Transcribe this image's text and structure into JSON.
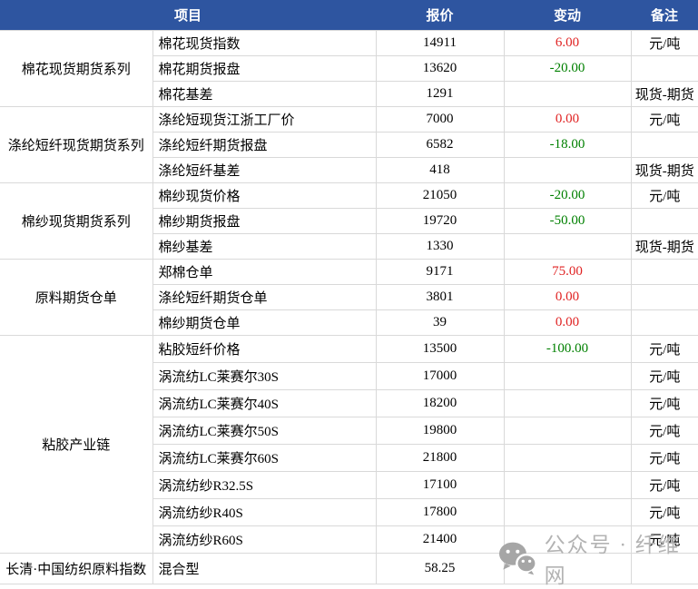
{
  "table": {
    "header": {
      "item": "项目",
      "price": "报价",
      "change": "变动",
      "note": "备注"
    },
    "groups": [
      {
        "name": "棉花现货期货系列",
        "rows": [
          {
            "item": "棉花现货指数",
            "price": "14911",
            "change": "6.00",
            "change_color": "red",
            "note": "元/吨"
          },
          {
            "item": "棉花期货报盘",
            "price": "13620",
            "change": "-20.00",
            "change_color": "green",
            "note": ""
          },
          {
            "item": "棉花基差",
            "price": "1291",
            "change": "",
            "change_color": "",
            "note": "现货-期货"
          }
        ]
      },
      {
        "name": "涤纶短纤现货期货系列",
        "rows": [
          {
            "item": "涤纶短现货江浙工厂价",
            "price": "7000",
            "change": "0.00",
            "change_color": "red",
            "note": "元/吨"
          },
          {
            "item": "涤纶短纤期货报盘",
            "price": "6582",
            "change": "-18.00",
            "change_color": "green",
            "note": ""
          },
          {
            "item": "涤纶短纤基差",
            "price": "418",
            "change": "",
            "change_color": "",
            "note": "现货-期货"
          }
        ]
      },
      {
        "name": "棉纱现货期货系列",
        "rows": [
          {
            "item": "棉纱现货价格",
            "price": "21050",
            "change": "-20.00",
            "change_color": "green",
            "note": "元/吨"
          },
          {
            "item": "棉纱期货报盘",
            "price": "19720",
            "change": "-50.00",
            "change_color": "green",
            "note": ""
          },
          {
            "item": "棉纱基差",
            "price": "1330",
            "change": "",
            "change_color": "",
            "note": "现货-期货"
          }
        ]
      },
      {
        "name": "原料期货仓单",
        "rows": [
          {
            "item": "郑棉仓单",
            "price": "9171",
            "change": "75.00",
            "change_color": "red",
            "note": ""
          },
          {
            "item": "涤纶短纤期货仓单",
            "price": "3801",
            "change": "0.00",
            "change_color": "red",
            "note": ""
          },
          {
            "item": "棉纱期货仓单",
            "price": "39",
            "change": "0.00",
            "change_color": "red",
            "note": ""
          }
        ]
      },
      {
        "name": "粘胶产业链",
        "rows": [
          {
            "item": "粘胶短纤价格",
            "price": "13500",
            "change": "-100.00",
            "change_color": "green",
            "note": "元/吨"
          },
          {
            "item": "涡流纺LC莱赛尔30S",
            "price": "17000",
            "change": "",
            "change_color": "",
            "note": "元/吨"
          },
          {
            "item": "涡流纺LC莱赛尔40S",
            "price": "18200",
            "change": "",
            "change_color": "",
            "note": "元/吨"
          },
          {
            "item": "涡流纺LC莱赛尔50S",
            "price": "19800",
            "change": "",
            "change_color": "",
            "note": "元/吨"
          },
          {
            "item": "涡流纺LC莱赛尔60S",
            "price": "21800",
            "change": "",
            "change_color": "",
            "note": "元/吨"
          },
          {
            "item": "涡流纺纱R32.5S",
            "price": "17100",
            "change": "",
            "change_color": "",
            "note": "元/吨"
          },
          {
            "item": "涡流纺纱R40S",
            "price": "17800",
            "change": "",
            "change_color": "",
            "note": "元/吨"
          },
          {
            "item": "涡流纺纱R60S",
            "price": "21400",
            "change": "",
            "change_color": "",
            "note": "元/吨"
          }
        ]
      },
      {
        "name": "长清·中国纺织原料指数",
        "rows": [
          {
            "item": "混合型",
            "price": "58.25",
            "change": "",
            "change_color": "",
            "note": ""
          }
        ]
      }
    ]
  },
  "watermark": {
    "icon": "wechat-icon",
    "text": "公众号 · 纤维网"
  },
  "colors": {
    "header_bg": "#2E55A0",
    "header_text": "#FFFFFF",
    "positive_change": "#E02222",
    "negative_change": "#008000",
    "grid_line": "#D9D9D9",
    "watermark_gray": "#B3B3B3",
    "body_text": "#000000"
  }
}
